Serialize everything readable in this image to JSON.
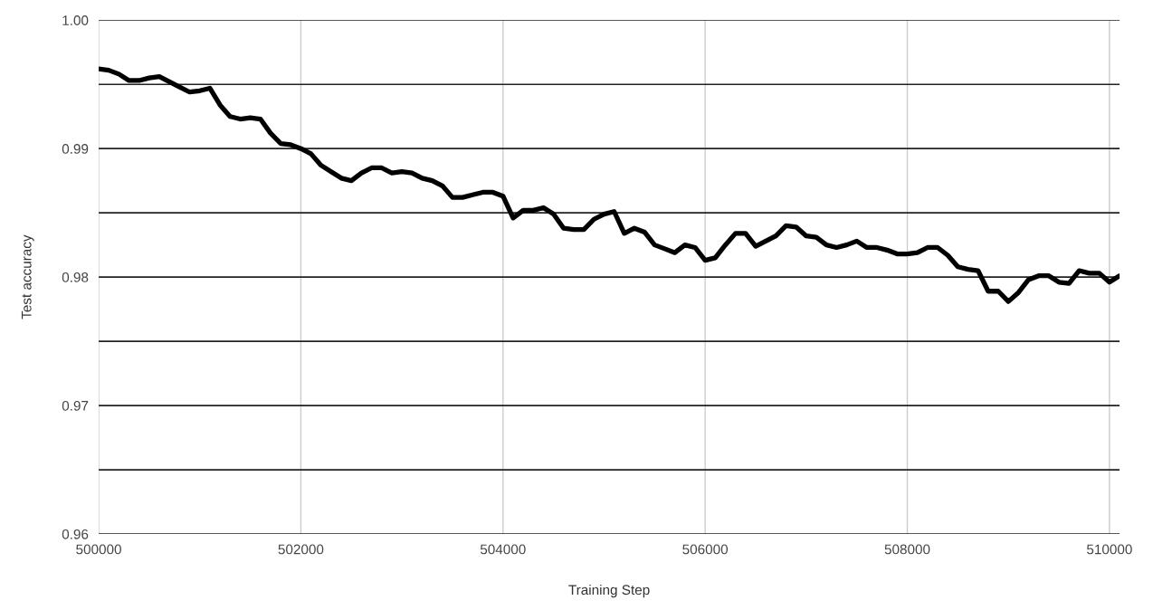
{
  "chart_data": {
    "type": "line",
    "xlabel": "Training Step",
    "ylabel": "Test accuracy",
    "x": [
      500000,
      500100,
      500200,
      500300,
      500400,
      500500,
      500600,
      500700,
      500800,
      500900,
      501000,
      501100,
      501200,
      501300,
      501400,
      501500,
      501600,
      501700,
      501800,
      501900,
      502000,
      502100,
      502200,
      502300,
      502400,
      502500,
      502600,
      502700,
      502800,
      502900,
      503000,
      503100,
      503200,
      503300,
      503400,
      503500,
      503600,
      503700,
      503800,
      503900,
      504000,
      504100,
      504200,
      504300,
      504400,
      504500,
      504600,
      504700,
      504800,
      504900,
      505000,
      505100,
      505200,
      505300,
      505400,
      505500,
      505600,
      505700,
      505800,
      505900,
      506000,
      506100,
      506200,
      506300,
      506400,
      506500,
      506600,
      506700,
      506800,
      506900,
      507000,
      507100,
      507200,
      507300,
      507400,
      507500,
      507600,
      507700,
      507800,
      507900,
      508000,
      508100,
      508200,
      508300,
      508400,
      508500,
      508600,
      508700,
      508800,
      508900,
      509000,
      509100,
      509200,
      509300,
      509400,
      509500,
      509600,
      509700,
      509800,
      509900,
      510000,
      510100
    ],
    "series": [
      {
        "color": "#000000",
        "values": [
          0.9962,
          0.9961,
          0.9958,
          0.9953,
          0.9953,
          0.9955,
          0.9956,
          0.9952,
          0.9948,
          0.9944,
          0.9945,
          0.9947,
          0.9934,
          0.9925,
          0.9923,
          0.9924,
          0.9923,
          0.9912,
          0.9904,
          0.9903,
          0.99,
          0.9896,
          0.9887,
          0.9882,
          0.9877,
          0.9875,
          0.9881,
          0.9885,
          0.9885,
          0.9881,
          0.9882,
          0.9881,
          0.9877,
          0.9875,
          0.9871,
          0.9862,
          0.9862,
          0.9864,
          0.9866,
          0.9866,
          0.9863,
          0.9846,
          0.9852,
          0.9852,
          0.9854,
          0.9849,
          0.9838,
          0.9837,
          0.9837,
          0.9845,
          0.9849,
          0.9851,
          0.9834,
          0.9838,
          0.9835,
          0.9825,
          0.9822,
          0.9819,
          0.9825,
          0.9823,
          0.9813,
          0.9815,
          0.9825,
          0.9834,
          0.9834,
          0.9824,
          0.9828,
          0.9832,
          0.984,
          0.9839,
          0.9832,
          0.9831,
          0.9825,
          0.9823,
          0.9825,
          0.9828,
          0.9823,
          0.9823,
          0.9821,
          0.9818,
          0.9818,
          0.9819,
          0.9823,
          0.9823,
          0.9817,
          0.9808,
          0.9806,
          0.9805,
          0.9789,
          0.9789,
          0.9781,
          0.9788,
          0.9798,
          0.9801,
          0.9801,
          0.9796,
          0.9795,
          0.9805,
          0.9803,
          0.9803,
          0.9796,
          0.9801
        ]
      }
    ],
    "xlim": [
      500000,
      510100
    ],
    "xticks": [
      500000,
      502000,
      504000,
      506000,
      508000,
      510000
    ],
    "ylim": [
      0.96,
      1.0
    ],
    "yticks": [
      {
        "value": 0.96,
        "label": "0.96"
      },
      {
        "value": 0.965,
        "label": null
      },
      {
        "value": 0.97,
        "label": "0.97"
      },
      {
        "value": 0.975,
        "label": null
      },
      {
        "value": 0.98,
        "label": "0.98"
      },
      {
        "value": 0.985,
        "label": null
      },
      {
        "value": 0.99,
        "label": "0.99"
      },
      {
        "value": 0.995,
        "label": null
      },
      {
        "value": 1.0,
        "label": "1.00"
      }
    ],
    "grid": true,
    "marker": "none",
    "line_style": "solid"
  }
}
